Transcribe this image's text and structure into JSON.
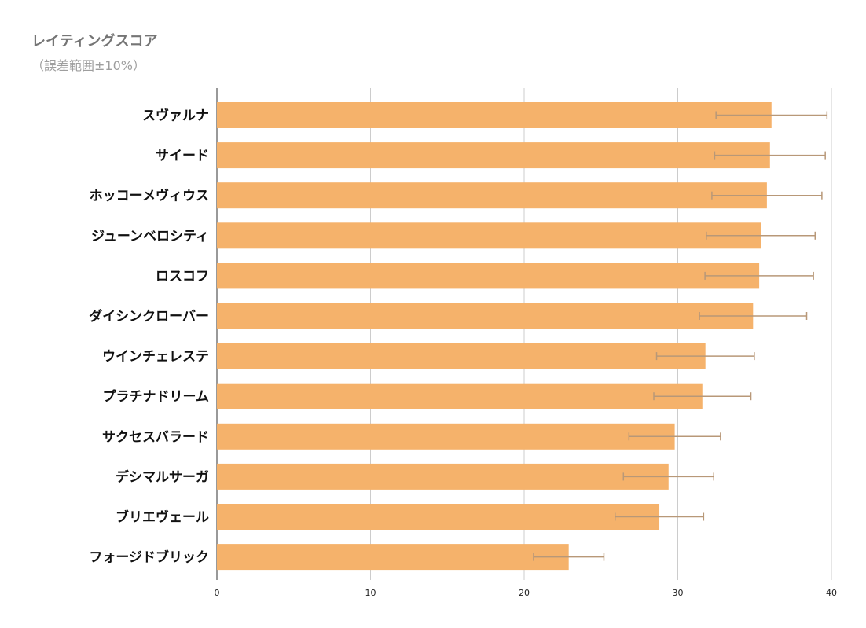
{
  "chart_data": {
    "type": "bar",
    "orientation": "horizontal",
    "title": "レイティングスコア",
    "subtitle": "（誤差範囲±10%）",
    "categories": [
      "スヴァルナ",
      "サイード",
      "ホッコーメヴィウス",
      "ジューンベロシティ",
      "ロスコフ",
      "ダイシンクローバー",
      "ウインチェレステ",
      "プラチナドリーム",
      "サクセスバラード",
      "デシマルサーガ",
      "ブリエヴェール",
      "フォージドブリック"
    ],
    "values": [
      36.1,
      36.0,
      35.8,
      35.4,
      35.3,
      34.9,
      31.8,
      31.6,
      29.8,
      29.4,
      28.8,
      22.9
    ],
    "error_percent": 10,
    "xlim": [
      0,
      40
    ],
    "xticks": [
      "0",
      "10",
      "20",
      "30",
      "40"
    ],
    "grid": true,
    "colors": {
      "bar": "#f5b26b",
      "error_bar": "#b89878",
      "grid": "#cccccc",
      "axis": "#333333"
    }
  }
}
